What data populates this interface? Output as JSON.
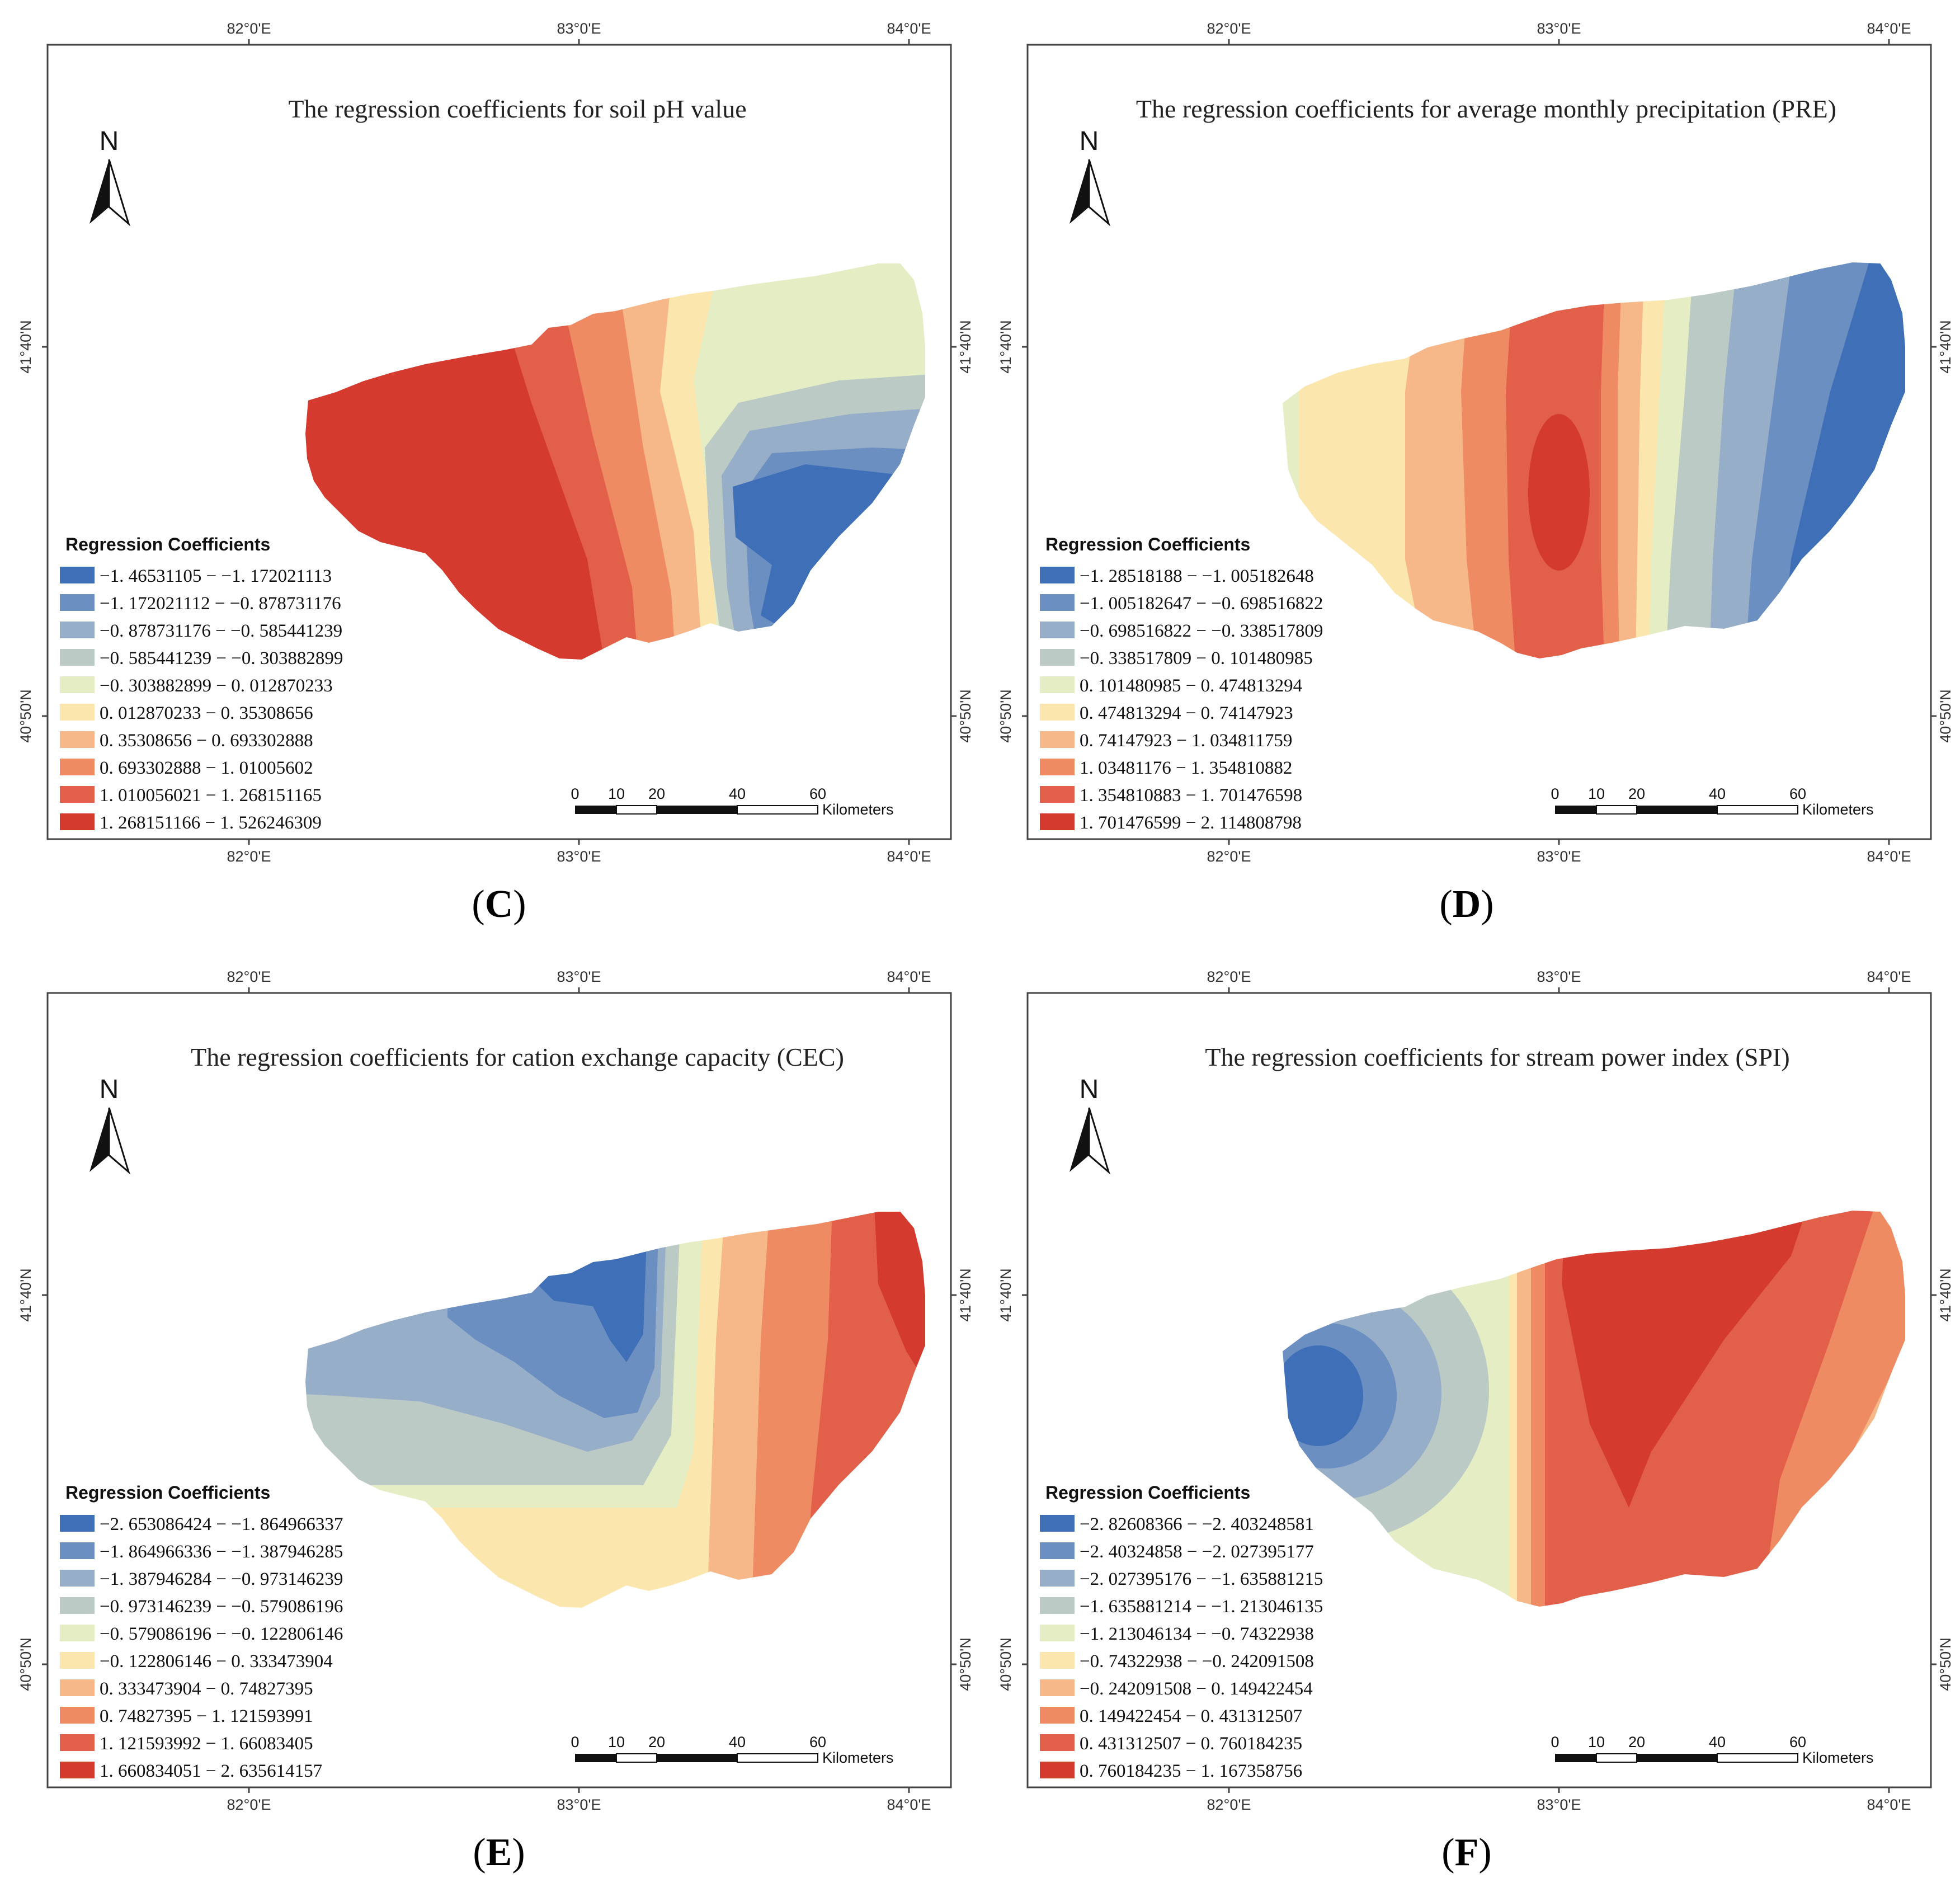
{
  "legend_title": "Regression Coefficients",
  "north_label": "N",
  "scale": {
    "ticks": [
      "0",
      "10",
      "20",
      "40",
      "60"
    ],
    "unit": "Kilometers"
  },
  "lon_labels": [
    "82°0'E",
    "83°0'E",
    "84°0'E"
  ],
  "lat_labels": [
    "41°40'N",
    "40°50'N"
  ],
  "colors": [
    "#3f6fb7",
    "#6c8fc2",
    "#97aec9",
    "#bccac6",
    "#e5edc5",
    "#fbe6ad",
    "#f6b888",
    "#ef8b63",
    "#e2604a",
    "#d43a2e"
  ],
  "panels": [
    {
      "letter": "C",
      "title": "The regression coefficients for soil pH value",
      "classes": [
        "−1. 46531105 − −1. 172021113",
        "−1. 172021112 − −0. 878731176",
        "−0. 878731176 − −0. 585441239",
        "−0. 585441239 − −0. 303882899",
        "−0. 303882899 − 0. 012870233",
        "0. 012870233 − 0. 35308656",
        "0. 35308656 − 0. 693302888",
        "0. 693302888 − 1. 01005602",
        "1. 010056021 − 1. 268151165",
        "1. 268151166 − 1. 526246309"
      ]
    },
    {
      "letter": "D",
      "title": "The regression coefficients for average monthly precipitation (PRE)",
      "classes": [
        "−1. 28518188 − −1. 005182648",
        "−1. 005182647 − −0. 698516822",
        "−0. 698516822 − −0. 338517809",
        "−0. 338517809 − 0. 101480985",
        "0. 101480985 − 0. 474813294",
        "0. 474813294 − 0. 74147923",
        "0. 74147923 − 1. 034811759",
        "1. 03481176 − 1. 354810882",
        "1. 354810883 − 1. 701476598",
        "1. 701476599 − 2. 114808798"
      ]
    },
    {
      "letter": "E",
      "title": "The regression coefficients for cation exchange capacity (CEC)",
      "classes": [
        "−2. 653086424 − −1. 864966337",
        "−1. 864966336 − −1. 387946285",
        "−1. 387946284 − −0. 973146239",
        "−0. 973146239 − −0. 579086196",
        "−0. 579086196 − −0. 122806146",
        "−0. 122806146 − 0. 333473904",
        "0. 333473904 − 0. 74827395",
        "0. 74827395 − 1. 121593991",
        "1. 121593992 − 1. 66083405",
        "1. 660834051 − 2. 635614157"
      ]
    },
    {
      "letter": "F",
      "title": "The regression coefficients for stream power index (SPI)",
      "classes": [
        "−2. 82608366 − −2. 403248581",
        "−2. 40324858 − −2. 027395177",
        "−2. 027395176 − −1. 635881215",
        "−1. 635881214 − −1. 213046135",
        "−1. 213046134 − −0. 74322938",
        "−0. 74322938 − −0. 242091508",
        "−0. 242091508 − 0. 149422454",
        "0. 149422454 − 0. 431312507",
        "0. 431312507 − 0. 760184235",
        "0. 760184235 − 1. 167358756"
      ]
    }
  ]
}
